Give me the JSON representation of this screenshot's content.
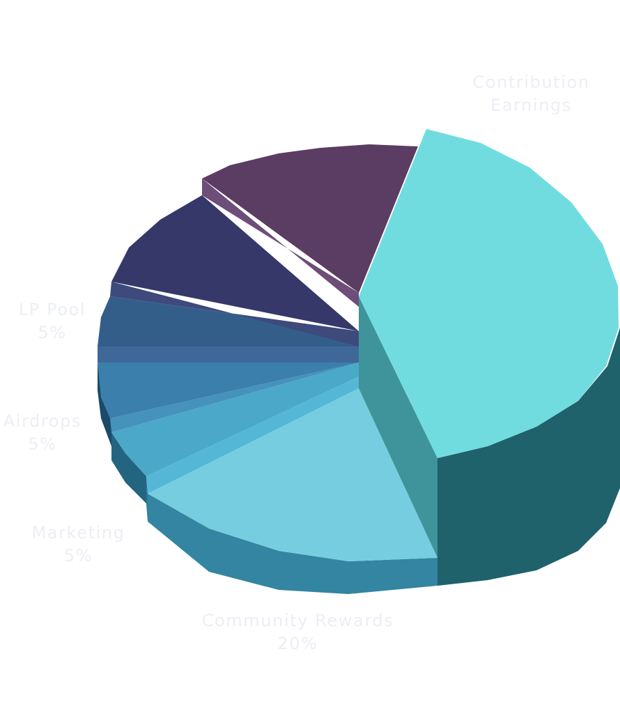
{
  "chart_data": {
    "type": "pie",
    "style": "3d-exploded",
    "slices": [
      {
        "name": "Contribution Earnings",
        "value": null,
        "value_label": "",
        "color_top": "#71dce0",
        "color_side": "#1f626b",
        "color_cut": "#3f949b"
      },
      {
        "name": "Community Rewards",
        "value": 20,
        "value_label": "20%",
        "color_top": "#77cde0",
        "color_side": "#3385a1"
      },
      {
        "name": "",
        "value": 3,
        "value_label": "",
        "color_top": "#55b7d6",
        "color_side": "#2a7894"
      },
      {
        "name": "Marketing",
        "value": 5,
        "value_label": "5%",
        "color_top": "#4ba8c8",
        "color_side": "#236580"
      },
      {
        "name": "",
        "value": 2,
        "value_label": "",
        "color_top": "#4592bc",
        "color_side": "#20577a"
      },
      {
        "name": "Airdrops",
        "value": 5,
        "value_label": "5%",
        "color_top": "#3b80ad",
        "color_side": "#1b4a6a"
      },
      {
        "name": "",
        "value": 2,
        "value_label": "",
        "color_top": "#3f6898",
        "color_side": "#243e66"
      },
      {
        "name": "LP Pool",
        "value": 5,
        "value_label": "5%",
        "color_top": "#345e8a",
        "color_side": "#20385b"
      },
      {
        "name": "",
        "value": 2,
        "value_label": "",
        "color_top": "#3e497c",
        "color_side": "#282b55"
      },
      {
        "name": "",
        "value": 10,
        "value_label": "",
        "color_top": "#353869",
        "color_side": "#23254a"
      },
      {
        "name": "",
        "value": 15,
        "value_label": "",
        "color_top": "#5b3c62",
        "color_side": "#6d4e78"
      }
    ],
    "label_color": "#eceef5"
  },
  "labels": {
    "contribution": {
      "line1": "Contribution",
      "line2": "Earnings"
    },
    "lp_pool": {
      "line1": "LP Pool",
      "line2": "5%"
    },
    "airdrops": {
      "line1": "Airdrops",
      "line2": "5%"
    },
    "marketing": {
      "line1": "Marketing",
      "line2": "5%"
    },
    "community": {
      "line1": "Community Rewards",
      "line2": "20%"
    }
  }
}
